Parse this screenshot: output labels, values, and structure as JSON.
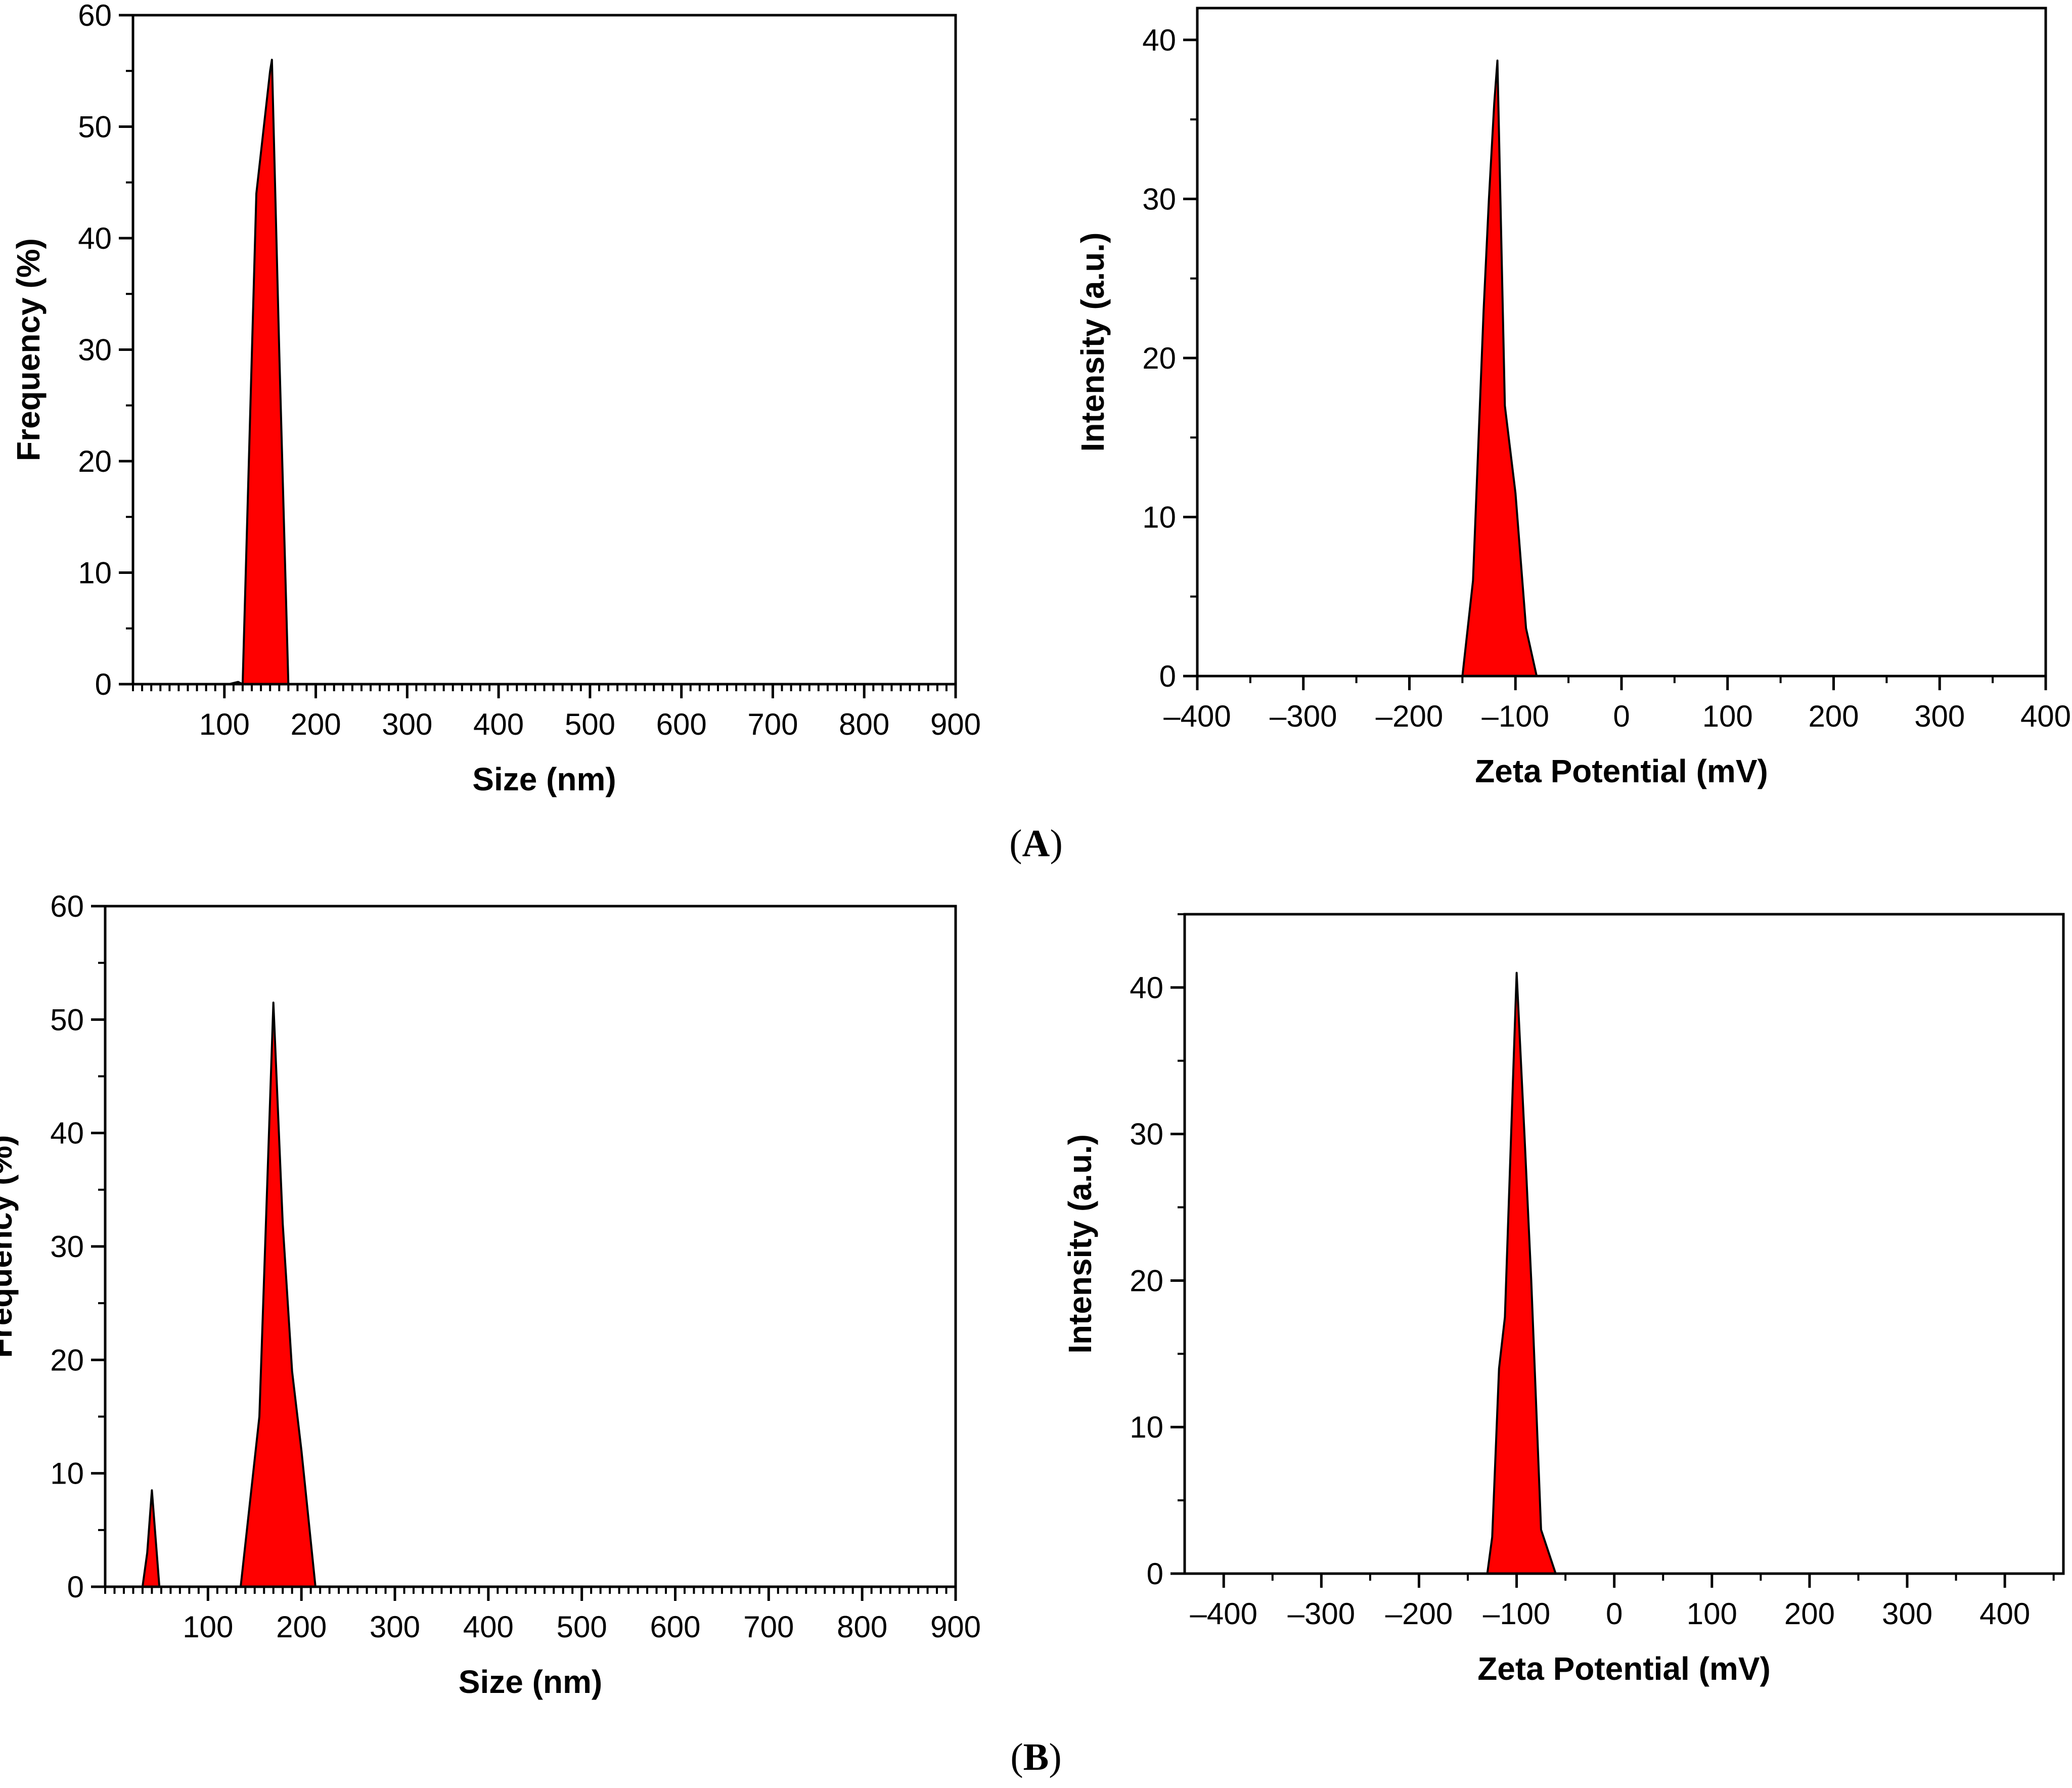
{
  "figure": {
    "panel_labels": [
      {
        "open": "(",
        "letter": "A",
        "close": ")"
      },
      {
        "open": "(",
        "letter": "B",
        "close": ")"
      }
    ],
    "fill_color": "#ff0000",
    "stroke_color": "#000000"
  },
  "chart_data": [
    {
      "type": "area",
      "panel": "A",
      "xlabel": "Size (nm)",
      "ylabel": "Frequency (%)",
      "xlim": [
        0,
        900
      ],
      "ylim": [
        0,
        60
      ],
      "xticks": [
        100,
        200,
        300,
        400,
        500,
        600,
        700,
        800,
        900
      ],
      "yticks": [
        0,
        10,
        20,
        30,
        40,
        50,
        60
      ],
      "minor_x_step": 10,
      "minor_y_step": 5,
      "grid": false,
      "series": [
        {
          "x": [
            0,
            105,
            115,
            120,
            135,
            150,
            152,
            160,
            170,
            900
          ],
          "y": [
            0,
            0,
            0.2,
            0,
            44,
            55,
            56,
            30,
            0,
            0
          ]
        }
      ]
    },
    {
      "type": "area",
      "panel": "A",
      "xlabel": "Zeta Potential (mV)",
      "ylabel": "Intensity (a.u.)",
      "xlim": [
        -400,
        400
      ],
      "ylim": [
        0,
        42
      ],
      "xticks": [
        -400,
        -300,
        -200,
        -100,
        0,
        100,
        200,
        300,
        400
      ],
      "yticks": [
        0,
        10,
        20,
        30,
        40
      ],
      "minor_x_step": 50,
      "minor_y_step": 5,
      "grid": false,
      "series": [
        {
          "x": [
            -400,
            -150,
            -140,
            -130,
            -125,
            -120,
            -117,
            -110,
            -100,
            -90,
            -80,
            400
          ],
          "y": [
            0,
            0,
            6,
            23,
            30,
            36,
            38.7,
            17,
            11.5,
            3,
            0,
            0
          ]
        }
      ]
    },
    {
      "type": "area",
      "panel": "B",
      "xlabel": "Size (nm)",
      "ylabel": "Frequency (%)",
      "xlim": [
        -10,
        900
      ],
      "ylim": [
        0,
        60
      ],
      "xticks": [
        100,
        200,
        300,
        400,
        500,
        600,
        700,
        800,
        900
      ],
      "yticks": [
        0,
        10,
        20,
        30,
        40,
        50,
        60
      ],
      "minor_x_step": 10,
      "minor_y_step": 5,
      "grid": false,
      "series": [
        {
          "x": [
            -10,
            30,
            35,
            40,
            48,
            135,
            155,
            170,
            180,
            190,
            200,
            215,
            900
          ],
          "y": [
            0,
            0,
            3,
            8.5,
            0,
            0,
            15,
            51.5,
            32,
            19,
            12,
            0,
            0
          ]
        }
      ]
    },
    {
      "type": "area",
      "panel": "B",
      "xlabel": "Zeta Potential (mV)",
      "ylabel": "Intensity (a.u.)",
      "xlim": [
        -440,
        460
      ],
      "ylim": [
        0,
        45
      ],
      "xticks": [
        -400,
        -300,
        -200,
        -100,
        0,
        100,
        200,
        300,
        400
      ],
      "yticks": [
        0,
        10,
        20,
        30,
        40
      ],
      "minor_x_step": 50,
      "minor_y_step": 5,
      "grid": false,
      "series": [
        {
          "x": [
            -440,
            -130,
            -125,
            -118,
            -112,
            -100,
            -92,
            -85,
            -75,
            -60,
            460
          ],
          "y": [
            0,
            0,
            2.5,
            14,
            17.5,
            41,
            30,
            20,
            3,
            0,
            0
          ]
        }
      ]
    }
  ]
}
